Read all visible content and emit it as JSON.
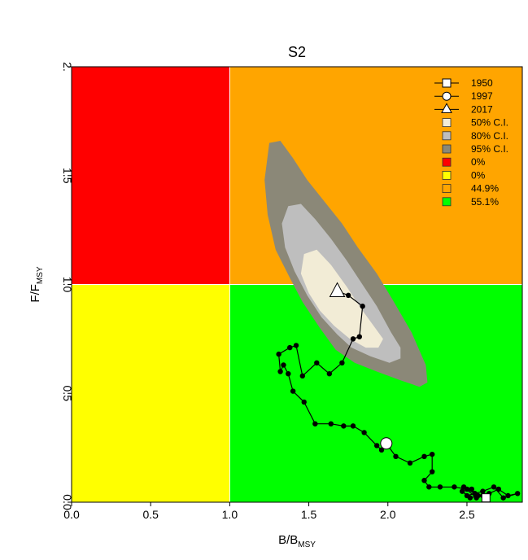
{
  "chart_data": {
    "type": "scatter",
    "title": "S2",
    "xlabel": "B/B",
    "xlabel_sub": "MSY",
    "ylabel": "F/F",
    "ylabel_sub": "MSY",
    "xlim": [
      0.0,
      2.85
    ],
    "ylim": [
      0.0,
      2.0
    ],
    "x_ticks": [
      "0.0",
      "0.5",
      "1.0",
      "1.5",
      "2.0",
      "2.5"
    ],
    "x_tick_values": [
      0.0,
      0.5,
      1.0,
      1.5,
      2.0,
      2.5
    ],
    "y_ticks": [
      "0.0",
      "0.5",
      "1.0",
      "1.5",
      "2."
    ],
    "y_tick_values": [
      0.0,
      0.5,
      1.0,
      1.5,
      2.0
    ],
    "quadrants": [
      {
        "name": "red",
        "color": "#ff0000",
        "x": [
          0,
          1
        ],
        "y": [
          1,
          2
        ]
      },
      {
        "name": "orange",
        "color": "#ffa500",
        "x": [
          1,
          2.85
        ],
        "y": [
          1,
          2
        ]
      },
      {
        "name": "yellow",
        "color": "#ffff00",
        "x": [
          0,
          1
        ],
        "y": [
          0,
          1
        ]
      },
      {
        "name": "green",
        "color": "#00ff00",
        "x": [
          1,
          2.85
        ],
        "y": [
          0,
          1
        ]
      }
    ],
    "ci_regions": [
      {
        "name": "95% C.I.",
        "color": "#8b8878",
        "polygon": [
          [
            1.25,
            1.65
          ],
          [
            1.32,
            1.66
          ],
          [
            1.4,
            1.58
          ],
          [
            1.49,
            1.48
          ],
          [
            1.6,
            1.38
          ],
          [
            1.71,
            1.28
          ],
          [
            1.81,
            1.17
          ],
          [
            1.93,
            1.05
          ],
          [
            2.03,
            0.93
          ],
          [
            2.15,
            0.78
          ],
          [
            2.24,
            0.63
          ],
          [
            2.25,
            0.55
          ],
          [
            2.2,
            0.53
          ],
          [
            2.08,
            0.56
          ],
          [
            1.93,
            0.6
          ],
          [
            1.79,
            0.64
          ],
          [
            1.67,
            0.7
          ],
          [
            1.57,
            0.8
          ],
          [
            1.46,
            0.92
          ],
          [
            1.38,
            1.03
          ],
          [
            1.29,
            1.16
          ],
          [
            1.24,
            1.32
          ],
          [
            1.22,
            1.48
          ]
        ]
      },
      {
        "name": "80% C.I.",
        "color": "#bebebe",
        "polygon": [
          [
            1.37,
            1.36
          ],
          [
            1.45,
            1.37
          ],
          [
            1.54,
            1.3
          ],
          [
            1.64,
            1.21
          ],
          [
            1.74,
            1.11
          ],
          [
            1.83,
            1.01
          ],
          [
            1.93,
            0.9
          ],
          [
            2.02,
            0.78
          ],
          [
            2.08,
            0.71
          ],
          [
            2.08,
            0.66
          ],
          [
            2.01,
            0.64
          ],
          [
            1.89,
            0.67
          ],
          [
            1.77,
            0.71
          ],
          [
            1.68,
            0.77
          ],
          [
            1.58,
            0.85
          ],
          [
            1.49,
            0.95
          ],
          [
            1.41,
            1.06
          ],
          [
            1.35,
            1.17
          ],
          [
            1.33,
            1.28
          ]
        ]
      },
      {
        "name": "50% C.I.",
        "color": "#f2ecd6",
        "polygon": [
          [
            1.47,
            1.14
          ],
          [
            1.55,
            1.16
          ],
          [
            1.64,
            1.09
          ],
          [
            1.74,
            0.99
          ],
          [
            1.83,
            0.89
          ],
          [
            1.92,
            0.8
          ],
          [
            1.97,
            0.75
          ],
          [
            1.94,
            0.71
          ],
          [
            1.86,
            0.71
          ],
          [
            1.76,
            0.75
          ],
          [
            1.66,
            0.81
          ],
          [
            1.57,
            0.88
          ],
          [
            1.5,
            0.96
          ],
          [
            1.45,
            1.05
          ]
        ]
      }
    ],
    "trajectory": [
      [
        2.62,
        0.02
      ],
      [
        2.6,
        0.03
      ],
      [
        2.55,
        0.04
      ],
      [
        2.5,
        0.03
      ],
      [
        2.47,
        0.05
      ],
      [
        2.52,
        0.02
      ],
      [
        2.57,
        0.03
      ],
      [
        2.53,
        0.06
      ],
      [
        2.48,
        0.07
      ],
      [
        2.56,
        0.02
      ],
      [
        2.64,
        0.04
      ],
      [
        2.7,
        0.06
      ],
      [
        2.76,
        0.03
      ],
      [
        2.82,
        0.04
      ],
      [
        2.73,
        0.02
      ],
      [
        2.67,
        0.07
      ],
      [
        2.6,
        0.05
      ],
      [
        2.55,
        0.04
      ],
      [
        2.5,
        0.06
      ],
      [
        2.42,
        0.07
      ],
      [
        2.33,
        0.07
      ],
      [
        2.26,
        0.07
      ],
      [
        2.23,
        0.1
      ],
      [
        2.28,
        0.14
      ],
      [
        2.28,
        0.22
      ],
      [
        2.23,
        0.21
      ],
      [
        2.14,
        0.18
      ],
      [
        2.05,
        0.21
      ],
      [
        1.99,
        0.27
      ],
      [
        1.96,
        0.24
      ],
      [
        1.93,
        0.26
      ],
      [
        1.85,
        0.32
      ],
      [
        1.78,
        0.35
      ],
      [
        1.72,
        0.35
      ],
      [
        1.64,
        0.36
      ],
      [
        1.54,
        0.36
      ],
      [
        1.47,
        0.46
      ],
      [
        1.4,
        0.51
      ],
      [
        1.37,
        0.59
      ],
      [
        1.34,
        0.63
      ],
      [
        1.32,
        0.6
      ],
      [
        1.31,
        0.68
      ],
      [
        1.38,
        0.71
      ],
      [
        1.42,
        0.72
      ],
      [
        1.46,
        0.58
      ],
      [
        1.55,
        0.64
      ],
      [
        1.63,
        0.59
      ],
      [
        1.71,
        0.64
      ],
      [
        1.78,
        0.75
      ],
      [
        1.82,
        0.76
      ],
      [
        1.84,
        0.9
      ],
      [
        1.75,
        0.95
      ],
      [
        1.68,
        0.97
      ]
    ],
    "markers": [
      {
        "label": "1950",
        "shape": "square",
        "x": 2.62,
        "y": 0.02
      },
      {
        "label": "1997",
        "shape": "circle",
        "x": 1.99,
        "y": 0.27
      },
      {
        "label": "2017",
        "shape": "triangle",
        "x": 1.68,
        "y": 0.97
      }
    ],
    "legend_position": "top-right",
    "legend": [
      {
        "label": "1950",
        "kind": "line-square"
      },
      {
        "label": "1997",
        "kind": "line-circle"
      },
      {
        "label": "2017",
        "kind": "line-triangle"
      },
      {
        "label": "50% C.I.",
        "kind": "box",
        "color": "#f2ecd6"
      },
      {
        "label": "80% C.I.",
        "kind": "box",
        "color": "#bebebe"
      },
      {
        "label": "95% C.I.",
        "kind": "box",
        "color": "#8b8878"
      },
      {
        "label": "0%",
        "kind": "box",
        "color": "#ff0000"
      },
      {
        "label": "0%",
        "kind": "box",
        "color": "#ffff00"
      },
      {
        "label": "44.9%",
        "kind": "box",
        "color": "#ffa500"
      },
      {
        "label": "55.1%",
        "kind": "box",
        "color": "#00ff00"
      }
    ]
  }
}
